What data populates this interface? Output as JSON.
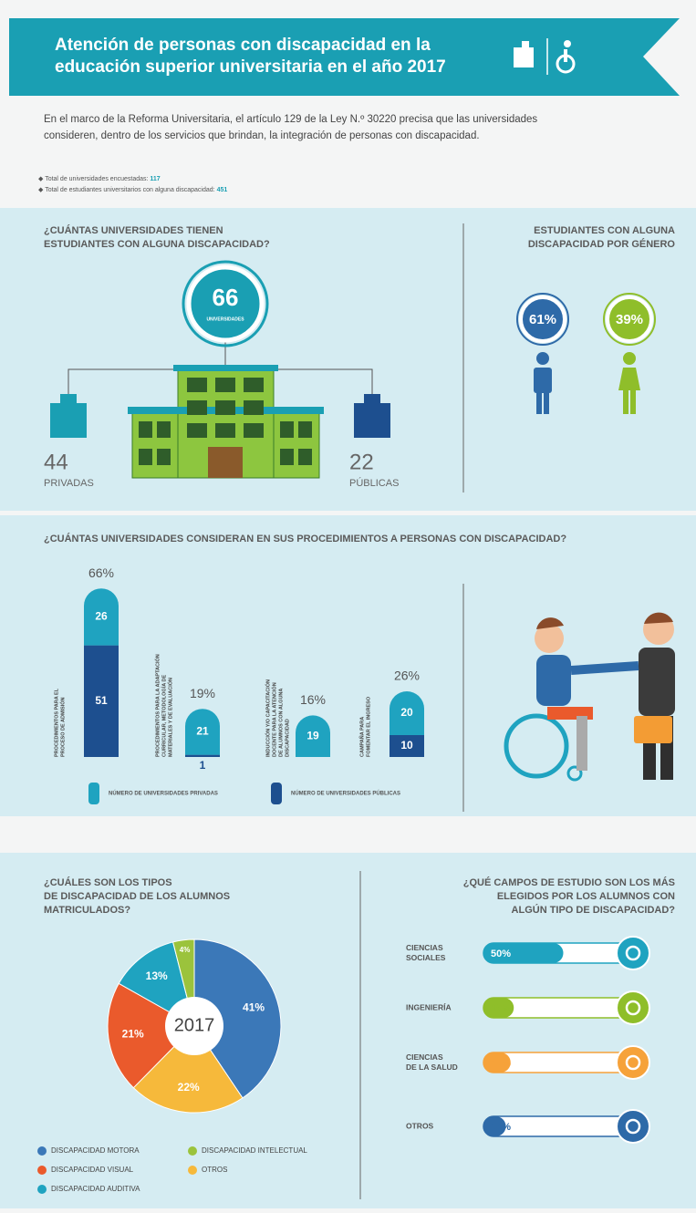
{
  "header": {
    "title": [
      "Atención de personas con discapacidad en la",
      "educación superior universitaria en el año 2017"
    ]
  },
  "intro": [
    "En el marco de la Reforma Universitaria, el artículo 129 de la Ley N.º 30220 precisa que las universidades",
    "consideren, dentro de los servicios que brindan, la integración de personas con discapacidad."
  ],
  "facts": [
    {
      "label": "Total de universidades encuestadas:",
      "value": 117
    },
    {
      "label": "Total de estudiantes universitarios con alguna discapacidad:",
      "value": 451
    }
  ],
  "universities": {
    "title": [
      "¿CUÁNTAS UNIVERSIDADES TIENEN",
      "ESTUDIANTES CON ALGUNA DISCAPACIDAD?"
    ],
    "total": 66,
    "total_label": "UNIVERSIDADES",
    "private": {
      "value": 44,
      "label": "PRIVADAS"
    },
    "public": {
      "value": 22,
      "label": "PÚBLICAS"
    }
  },
  "gender": {
    "title": [
      "ESTUDIANTES CON ALGUNA",
      "DISCAPACIDAD POR GÉNERO"
    ],
    "labels": [
      "61%",
      "39%"
    ],
    "colors": [
      "#2e6aa8",
      "#8fbe2a"
    ]
  },
  "procedures": {
    "title": "¿CUÁNTAS UNIVERSIDADES CONSIDERAN EN SUS PROCEDIMIENTOS A PERSONAS CON DISCAPACIDAD?",
    "categories": [
      [
        "PROCEDIMIENTOS PARA EL",
        "PROCESO DE ADMISIÓN"
      ],
      [
        "PROCEDIMIENTOS PARA LA ADAPTACIÓN",
        "CURRICULAR, METODOLOGÍA DE",
        "MATERIALES Y DE EVALUACIÓN"
      ],
      [
        "INDUCCIÓN Y/O CAPACITACIÓN",
        "DOCENTE PARA LA ATENCIÓN",
        "DE ALUMNOS CON ALGUNA",
        "DISCAPACIDAD"
      ],
      [
        "CAMPAÑA PARA",
        "FOMENTAR EL INGRESO"
      ]
    ],
    "series": [
      {
        "name": "NÚMERO DE UNIVERSIDADES PRIVADAS",
        "color": "#1fa3c0",
        "values": [
          26,
          21,
          19,
          20
        ]
      },
      {
        "name": "NÚMERO DE UNIVERSIDADES PÚBLICAS",
        "color": "#1d4f8f",
        "values": [
          51,
          1,
          null,
          10
        ]
      }
    ],
    "total_labels": [
      "66%",
      "19%",
      "16%",
      "26%"
    ]
  },
  "types": {
    "title": [
      "¿CUÁLES SON LOS TIPOS",
      "DE DISCAPACIDAD DE LOS ALUMNOS",
      "MATRICULADOS?"
    ],
    "center": "2017",
    "categories": [
      "DISCAPACIDAD MOTORA",
      "OTROS",
      "DISCAPACIDAD VISUAL",
      "DISCAPACIDAD AUDITIVA",
      "DISCAPACIDAD INTELECTUAL"
    ],
    "values": [
      41,
      22,
      21,
      13,
      4
    ],
    "value_labels": [
      "41%",
      "22%",
      "21%",
      "13%",
      "4%"
    ],
    "colors": [
      "#3b78b8",
      "#f6b93b",
      "#ea5a2c",
      "#1fa3c0",
      "#9bc33c"
    ]
  },
  "fields": {
    "title": [
      "¿QUÉ CAMPOS DE ESTUDIO SON LOS MÁS",
      "ELEGIDOS POR LOS ALUMNOS CON",
      "ALGÚN TIPO DE DISCAPACIDAD?"
    ],
    "categories": [
      [
        "CIENCIAS",
        "SOCIALES"
      ],
      [
        "INGENIERÍA"
      ],
      [
        "CIENCIAS",
        "DE LA SALUD"
      ],
      [
        "OTROS"
      ]
    ],
    "values": [
      50,
      19,
      17,
      14
    ],
    "value_labels": [
      "50%",
      "19%",
      "17%",
      "14%"
    ],
    "colors": [
      "#1fa3c0",
      "#8fbe2a",
      "#f6a23a",
      "#2e6aa8"
    ]
  }
}
